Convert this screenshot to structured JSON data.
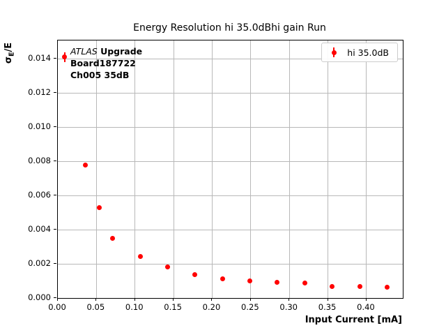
{
  "colors": {
    "series": "#ff0000",
    "grid": "#b8b8b8",
    "legend_border": "#cccccc"
  },
  "annotation": {
    "line1_italic": "ATLAS",
    "line1_bold": " Upgrade",
    "line2": "Board187722",
    "line3": "Ch005 35dB"
  },
  "legend": {
    "label": "hi 35.0dB"
  },
  "chart_data": {
    "type": "scatter",
    "title": "Energy Resolution hi 35.0dBhi gain Run",
    "xlabel": "Input Current [mA]",
    "ylabel_sigma": "σ",
    "ylabel_sub": "E",
    "ylabel_rest": "/E",
    "xlim": [
      0,
      0.447
    ],
    "ylim": [
      0,
      0.01508
    ],
    "grid": true,
    "legend_position": "upper right",
    "x_ticks": [
      {
        "v": 0.0,
        "label": "0.00"
      },
      {
        "v": 0.05,
        "label": "0.05"
      },
      {
        "v": 0.1,
        "label": "0.10"
      },
      {
        "v": 0.15,
        "label": "0.15"
      },
      {
        "v": 0.2,
        "label": "0.20"
      },
      {
        "v": 0.25,
        "label": "0.25"
      },
      {
        "v": 0.3,
        "label": "0.30"
      },
      {
        "v": 0.35,
        "label": "0.35"
      },
      {
        "v": 0.4,
        "label": "0.40"
      }
    ],
    "y_ticks": [
      {
        "v": 0.0,
        "label": "0.000"
      },
      {
        "v": 0.002,
        "label": "0.002"
      },
      {
        "v": 0.004,
        "label": "0.004"
      },
      {
        "v": 0.006,
        "label": "0.006"
      },
      {
        "v": 0.008,
        "label": "0.008"
      },
      {
        "v": 0.01,
        "label": "0.010"
      },
      {
        "v": 0.012,
        "label": "0.012"
      },
      {
        "v": 0.014,
        "label": "0.014"
      }
    ],
    "series": [
      {
        "name": "hi 35.0dB",
        "marker": "circle",
        "color": "#ff0000",
        "points": [
          {
            "x": 0.0089,
            "y": 0.0141,
            "yerr": 0.0003
          },
          {
            "x": 0.0356,
            "y": 0.0078,
            "yerr": 0
          },
          {
            "x": 0.0533,
            "y": 0.0053,
            "yerr": 0
          },
          {
            "x": 0.0711,
            "y": 0.0035,
            "yerr": 0
          },
          {
            "x": 0.1067,
            "y": 0.00245,
            "yerr": 0
          },
          {
            "x": 0.1422,
            "y": 0.0018,
            "yerr": 0
          },
          {
            "x": 0.1778,
            "y": 0.00136,
            "yerr": 0
          },
          {
            "x": 0.2133,
            "y": 0.00113,
            "yerr": 0
          },
          {
            "x": 0.2489,
            "y": 0.00099,
            "yerr": 0
          },
          {
            "x": 0.2844,
            "y": 0.00092,
            "yerr": 0
          },
          {
            "x": 0.32,
            "y": 0.00086,
            "yerr": 0
          },
          {
            "x": 0.3556,
            "y": 0.00068,
            "yerr": 0
          },
          {
            "x": 0.3911,
            "y": 0.00068,
            "yerr": 0
          },
          {
            "x": 0.4267,
            "y": 0.00064,
            "yerr": 0
          }
        ]
      }
    ]
  }
}
